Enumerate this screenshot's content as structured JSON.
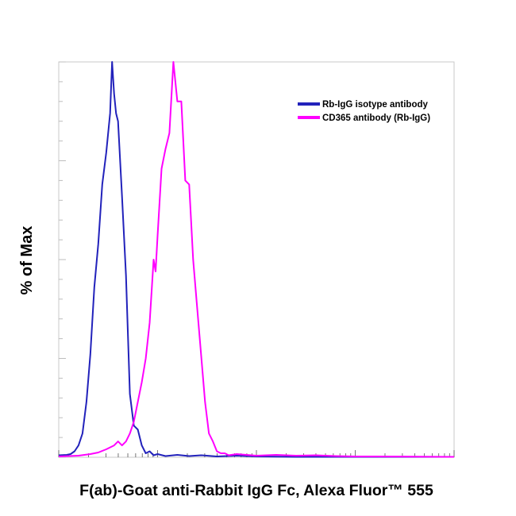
{
  "chart_data": {
    "type": "line",
    "title": "",
    "xlabel": "F(ab)-Goat anti-Rabbit IgG Fc, Alexa Fluor™ 555",
    "ylabel": "% of Max",
    "xscale": "log",
    "ylim": [
      0,
      100
    ],
    "grid": false,
    "legend_position": "top-right",
    "series": [
      {
        "name": "Rb-IgG isotype antibody",
        "color": "#2222bb",
        "x": [
          0.0,
          0.02,
          0.03,
          0.04,
          0.05,
          0.06,
          0.07,
          0.08,
          0.09,
          0.1,
          0.11,
          0.12,
          0.13,
          0.135,
          0.14,
          0.145,
          0.15,
          0.16,
          0.17,
          0.18,
          0.19,
          0.2,
          0.21,
          0.22,
          0.23,
          0.24,
          0.25,
          0.27,
          0.3,
          0.33,
          0.36,
          0.4,
          0.45,
          0.5,
          0.6,
          1.0
        ],
        "y": [
          0.5,
          0.6,
          0.8,
          1.5,
          3,
          6,
          14,
          26,
          43,
          54,
          69,
          77,
          87,
          100,
          92,
          87,
          85,
          66,
          46,
          16,
          8,
          7,
          3,
          1,
          1.5,
          0.5,
          0.8,
          0.3,
          0.6,
          0.3,
          0.5,
          0.2,
          0.4,
          0.2,
          0.1,
          0.1
        ]
      },
      {
        "name": "CD365 antibody (Rb-IgG)",
        "color": "#ff00ff",
        "x": [
          0.0,
          0.05,
          0.08,
          0.1,
          0.12,
          0.14,
          0.15,
          0.16,
          0.17,
          0.18,
          0.19,
          0.2,
          0.21,
          0.22,
          0.23,
          0.24,
          0.245,
          0.25,
          0.26,
          0.27,
          0.28,
          0.29,
          0.3,
          0.31,
          0.32,
          0.33,
          0.34,
          0.35,
          0.36,
          0.37,
          0.38,
          0.39,
          0.4,
          0.41,
          0.42,
          0.43,
          0.45,
          0.5,
          0.55,
          0.6,
          0.65,
          0.7,
          0.75,
          0.8,
          1.0
        ],
        "y": [
          0.2,
          0.4,
          0.8,
          1.2,
          2,
          3,
          4,
          3,
          4,
          6,
          9,
          14,
          19,
          25,
          34,
          50,
          47,
          56,
          73,
          78,
          82,
          100,
          90,
          90,
          70,
          69,
          50,
          38,
          26,
          14,
          6,
          4,
          1.5,
          1,
          1,
          0.5,
          0.8,
          0.4,
          0.6,
          0.4,
          0.5,
          0.3,
          0.2,
          0.2,
          0.1
        ]
      }
    ]
  }
}
